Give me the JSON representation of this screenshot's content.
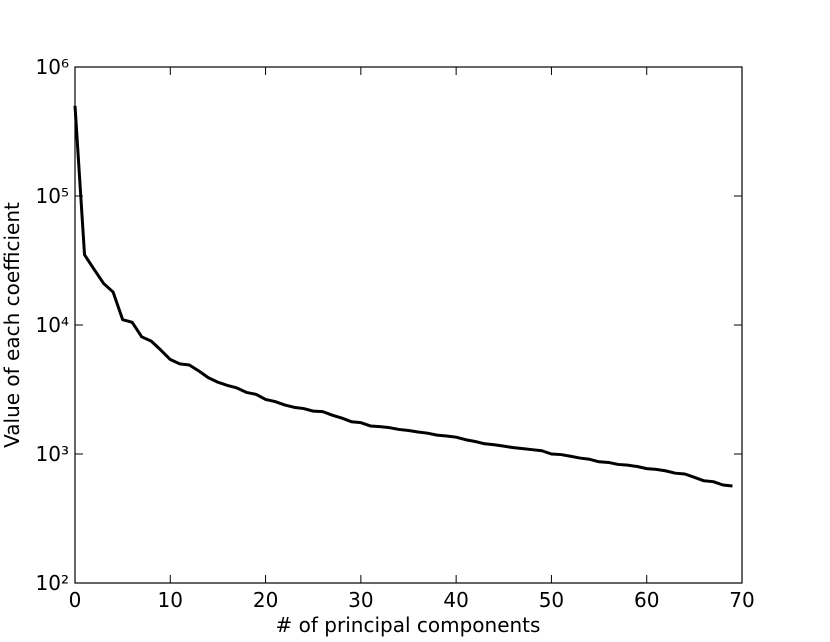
{
  "chart_data": {
    "type": "line",
    "x_label": "# of principal components",
    "y_label": "Value of each coefficient",
    "x": [
      0,
      1,
      2,
      3,
      4,
      5,
      6,
      7,
      8,
      9,
      10,
      11,
      12,
      13,
      14,
      15,
      16,
      17,
      18,
      19,
      20,
      21,
      22,
      23,
      24,
      25,
      26,
      27,
      28,
      29,
      30,
      31,
      32,
      33,
      34,
      35,
      36,
      37,
      38,
      39,
      40,
      41,
      42,
      43,
      44,
      45,
      46,
      47,
      48,
      49,
      50,
      51,
      52,
      53,
      54,
      55,
      56,
      57,
      58,
      59,
      60,
      61,
      62,
      63,
      64,
      65,
      66,
      67,
      68,
      69
    ],
    "values": [
      500000,
      35000,
      27000,
      21000,
      18000,
      11000,
      10500,
      8100,
      7500,
      6400,
      5400,
      5000,
      4900,
      4400,
      3900,
      3600,
      3400,
      3250,
      3000,
      2900,
      2650,
      2550,
      2400,
      2300,
      2250,
      2150,
      2130,
      2000,
      1900,
      1780,
      1750,
      1650,
      1630,
      1600,
      1550,
      1520,
      1480,
      1450,
      1400,
      1380,
      1350,
      1290,
      1250,
      1200,
      1180,
      1150,
      1120,
      1100,
      1080,
      1060,
      1000,
      990,
      960,
      930,
      910,
      870,
      860,
      830,
      820,
      800,
      770,
      760,
      740,
      710,
      700,
      660,
      620,
      610,
      575,
      565
    ],
    "color": "#000000",
    "log_y": true,
    "xlim": [
      0,
      70
    ],
    "xticks": [
      0,
      10,
      20,
      30,
      40,
      50,
      60,
      70
    ],
    "ylim": [
      100,
      1000000
    ],
    "yticks": [
      {
        "value": 100,
        "label": "10²"
      },
      {
        "value": 1000,
        "label": "10³"
      },
      {
        "value": 10000,
        "label": "10⁴"
      },
      {
        "value": 100000,
        "label": "10⁵"
      },
      {
        "value": 1000000,
        "label": "10⁶"
      }
    ]
  }
}
